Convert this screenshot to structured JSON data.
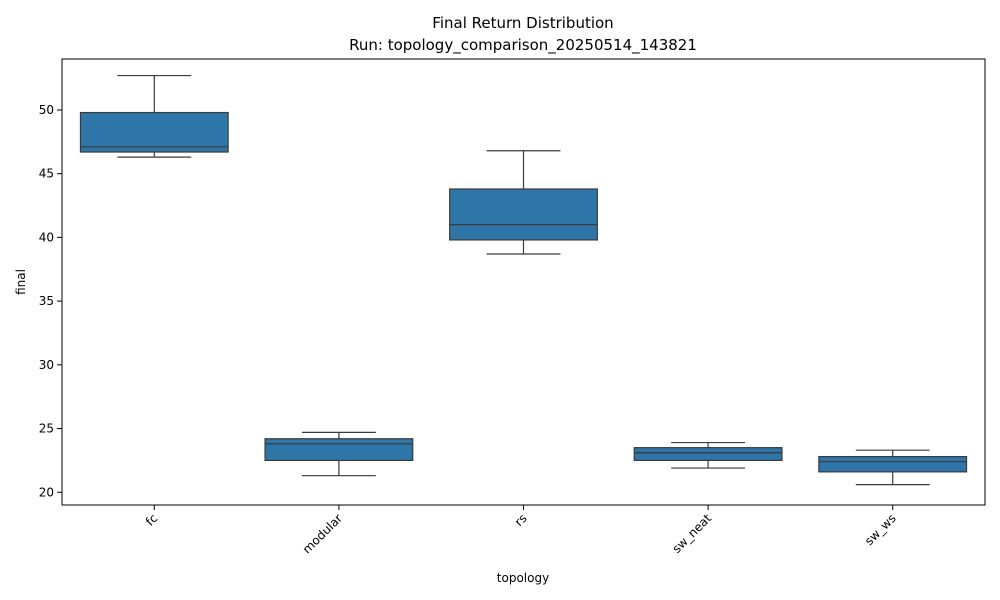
{
  "chart_data": {
    "type": "box",
    "title": "Final Return Distribution",
    "subtitle": "Run: topology_comparison_20250514_143821",
    "xlabel": "topology",
    "ylabel": "final",
    "ylim": [
      19,
      54
    ],
    "yticks": [
      20,
      25,
      30,
      35,
      40,
      45,
      50
    ],
    "categories": [
      "fc",
      "modular",
      "rs",
      "sw_neat",
      "sw_ws"
    ],
    "boxes": [
      {
        "category": "fc",
        "whisker_low": 46.3,
        "q1": 46.7,
        "median": 47.1,
        "q3": 49.8,
        "whisker_high": 52.7
      },
      {
        "category": "modular",
        "whisker_low": 21.3,
        "q1": 22.5,
        "median": 23.8,
        "q3": 24.2,
        "whisker_high": 24.7
      },
      {
        "category": "rs",
        "whisker_low": 38.7,
        "q1": 39.8,
        "median": 41.0,
        "q3": 43.8,
        "whisker_high": 46.8
      },
      {
        "category": "sw_neat",
        "whisker_low": 21.9,
        "q1": 22.5,
        "median": 23.1,
        "q3": 23.5,
        "whisker_high": 23.9
      },
      {
        "category": "sw_ws",
        "whisker_low": 20.6,
        "q1": 21.6,
        "median": 22.4,
        "q3": 22.8,
        "whisker_high": 23.3
      }
    ],
    "grid": false,
    "legend": "none",
    "colors": {
      "box_fill": "#2e75a8",
      "line": "#3a3a3a",
      "axis": "#000000"
    }
  }
}
